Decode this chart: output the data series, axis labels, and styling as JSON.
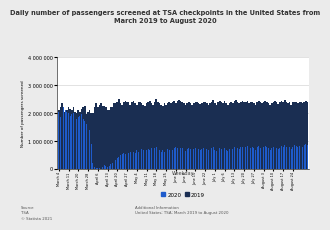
{
  "title": "Daily number of passengers screened at TSA checkpoints in the United States from\nMarch 2019 to August 2020",
  "ylabel": "Number of passengers screened",
  "xlabel": "Weekday",
  "legend_label_2020": "2020",
  "legend_label_2019": "2019",
  "color_2020": "#1e5bcc",
  "color_2019": "#1a2e52",
  "color_background": "#ebebeb",
  "color_plot_bg": "#ffffff",
  "ylim": [
    0,
    4000000
  ],
  "yticks": [
    0,
    1000000,
    2000000,
    3000000,
    4000000
  ],
  "source_text": "Source\nTSA\n© Statista 2021",
  "additional_text": "Additional Information\nUnited States; TSA; March 2019 to August 2020",
  "xtick_labels": [
    "March 4",
    "March 11",
    "March 20",
    "March 28",
    "April 6",
    "April 13",
    "April 20",
    "April 27",
    "May 4",
    "May 11",
    "May 18",
    "May 25",
    "June 1",
    "June 8",
    "June 15",
    "June 22",
    "July 1",
    "July 6",
    "July 13",
    "July 20",
    "July 27",
    "August 3",
    "August 10",
    "August 17",
    "August 24"
  ],
  "values_2019": [
    2100000,
    2200000,
    2350000,
    2100000,
    2050000,
    2100000,
    2200000,
    2150000,
    2100000,
    2200000,
    2050000,
    2000000,
    2100000,
    2050000,
    2150000,
    2200000,
    2250000,
    1950000,
    2050000,
    2100000,
    2000000,
    2000000,
    2200000,
    2350000,
    2200000,
    2300000,
    2350000,
    2250000,
    2250000,
    2200000,
    2100000,
    2100000,
    2200000,
    2200000,
    2350000,
    2350000,
    2400000,
    2500000,
    2350000,
    2300000,
    2400000,
    2450000,
    2400000,
    2400000,
    2300000,
    2400000,
    2450000,
    2350000,
    2300000,
    2400000,
    2400000,
    2350000,
    2300000,
    2250000,
    2350000,
    2400000,
    2450000,
    2350000,
    2300000,
    2400000,
    2500000,
    2400000,
    2350000,
    2300000,
    2250000,
    2350000,
    2300000,
    2350000,
    2400000,
    2350000,
    2400000,
    2450000,
    2350000,
    2450000,
    2480000,
    2450000,
    2400000,
    2350000,
    2300000,
    2350000,
    2400000,
    2350000,
    2300000,
    2350000,
    2400000,
    2380000,
    2350000,
    2320000,
    2350000,
    2400000,
    2380000,
    2350000,
    2300000,
    2350000,
    2400000,
    2480000,
    2350000,
    2300000,
    2400000,
    2450000,
    2380000,
    2350000,
    2420000,
    2350000,
    2300000,
    2350000,
    2400000,
    2350000,
    2430000,
    2480000,
    2400000,
    2350000,
    2400000,
    2420000,
    2380000,
    2400000,
    2450000,
    2350000,
    2380000,
    2400000,
    2350000,
    2300000,
    2400000,
    2450000,
    2380000,
    2350000,
    2400000,
    2450000,
    2380000,
    2350000,
    2300000,
    2350000,
    2400000,
    2450000,
    2380000,
    2320000,
    2380000,
    2450000,
    2400000,
    2480000,
    2380000,
    2350000,
    2400000,
    2300000,
    2380000,
    2400000,
    2380000,
    2350000,
    2380000,
    2380000,
    2350000,
    2400000,
    2450000,
    2380000
  ],
  "values_2020": [
    2050000,
    1850000,
    2050000,
    2200000,
    2100000,
    2050000,
    2000000,
    1900000,
    1950000,
    2000000,
    1950000,
    1800000,
    1850000,
    1900000,
    1950000,
    1800000,
    1700000,
    1600000,
    1550000,
    1400000,
    900000,
    200000,
    80000,
    40000,
    25000,
    18000,
    15000,
    80000,
    150000,
    100000,
    80000,
    90000,
    180000,
    200000,
    280000,
    320000,
    380000,
    420000,
    480000,
    530000,
    580000,
    530000,
    480000,
    580000,
    620000,
    570000,
    620000,
    570000,
    660000,
    610000,
    670000,
    720000,
    670000,
    620000,
    660000,
    720000,
    670000,
    730000,
    670000,
    730000,
    780000,
    730000,
    670000,
    620000,
    660000,
    620000,
    670000,
    720000,
    670000,
    730000,
    670000,
    730000,
    780000,
    730000,
    790000,
    760000,
    730000,
    690000,
    650000,
    700000,
    750000,
    700000,
    660000,
    710000,
    760000,
    740000,
    710000,
    680000,
    710000,
    750000,
    730000,
    700000,
    660000,
    710000,
    760000,
    800000,
    670000,
    640000,
    700000,
    760000,
    720000,
    690000,
    740000,
    680000,
    640000,
    700000,
    760000,
    710000,
    770000,
    820000,
    760000,
    720000,
    770000,
    780000,
    750000,
    770000,
    810000,
    720000,
    760000,
    780000,
    730000,
    690000,
    770000,
    810000,
    750000,
    720000,
    780000,
    820000,
    770000,
    730000,
    690000,
    740000,
    790000,
    760000,
    730000,
    700000,
    760000,
    820000,
    780000,
    840000,
    770000,
    740000,
    800000,
    720000,
    790000,
    840000,
    810000,
    780000,
    830000,
    820000,
    800000,
    850000,
    900000,
    840000
  ]
}
